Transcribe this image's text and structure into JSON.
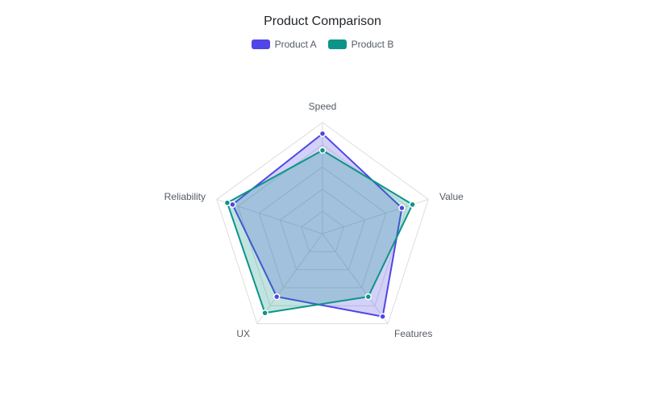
{
  "title": "Product Comparison",
  "legend": [
    {
      "label": "Product A",
      "color": "#4F46E5"
    },
    {
      "label": "Product B",
      "color": "#0D9488"
    }
  ],
  "chart_data": {
    "type": "radar",
    "title": "Product Comparison",
    "categories": [
      "Speed",
      "Value",
      "Features",
      "UX",
      "Reliability"
    ],
    "series": [
      {
        "name": "Product A",
        "color": "#4F46E5",
        "values": [
          90,
          75,
          92,
          70,
          85
        ]
      },
      {
        "name": "Product B",
        "color": "#0D9488",
        "values": [
          75,
          85,
          70,
          88,
          90
        ]
      }
    ],
    "range": [
      0,
      100
    ],
    "grid_rings": 5,
    "grid": true,
    "legend_position": "top"
  }
}
